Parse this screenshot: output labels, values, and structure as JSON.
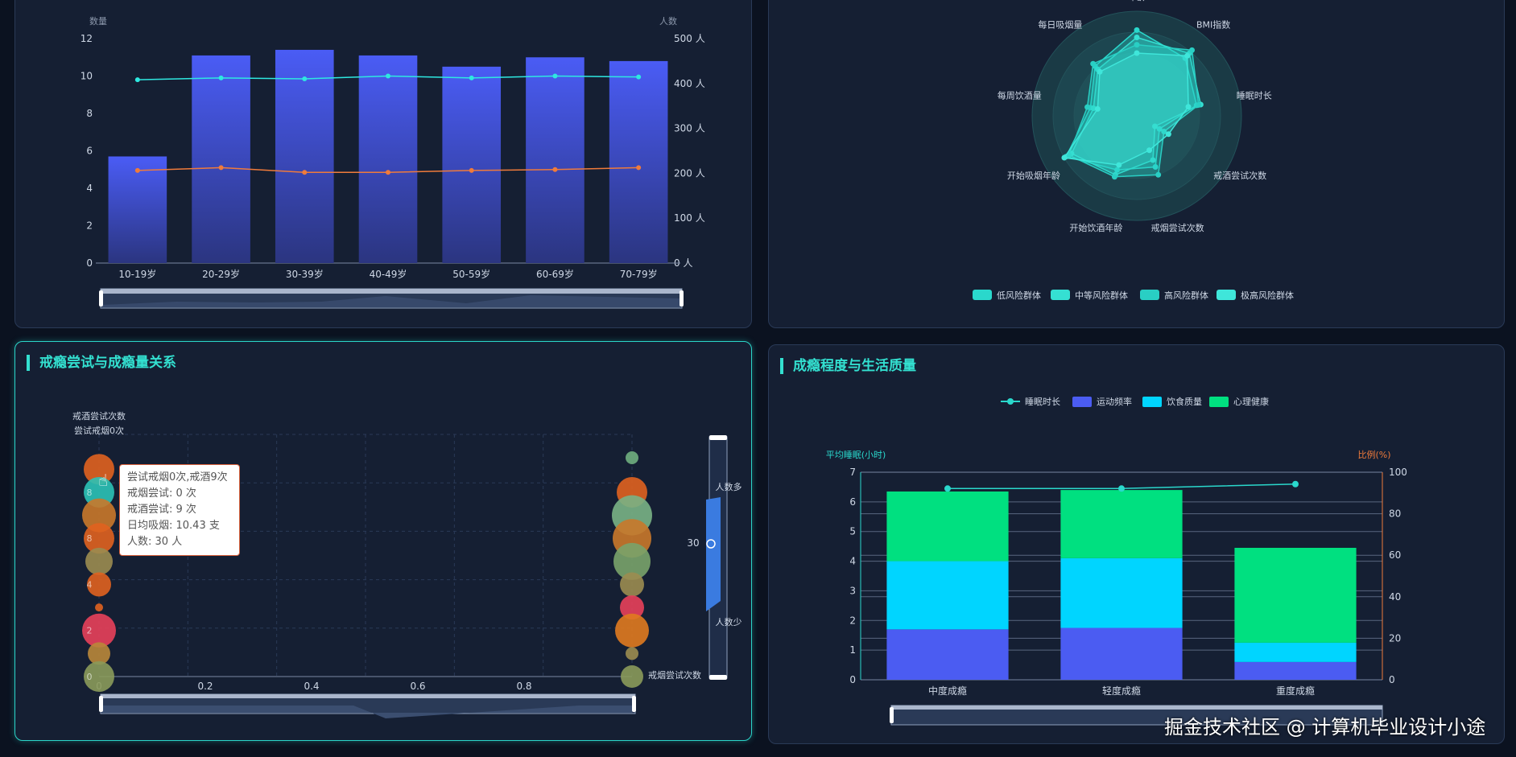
{
  "age_chart": {
    "y_left_label": "数量",
    "y_right_label": "人数",
    "categories": [
      "10-19岁",
      "20-29岁",
      "30-39岁",
      "40-49岁",
      "50-59岁",
      "60-69岁",
      "70-79岁"
    ],
    "left_ticks": [
      "0",
      "2",
      "4",
      "6",
      "8",
      "10",
      "12"
    ],
    "right_ticks": [
      "0 人",
      "100 人",
      "200 人",
      "300 人",
      "400 人",
      "500 人"
    ],
    "chart_data": {
      "type": "bar",
      "categories": [
        "10-19岁",
        "20-29岁",
        "30-39岁",
        "40-49岁",
        "50-59岁",
        "60-69岁",
        "70-79岁"
      ],
      "series": [
        {
          "type": "bar",
          "axis": "left",
          "values": [
            5.7,
            11.1,
            11.4,
            11.1,
            10.5,
            11.0,
            10.8
          ]
        },
        {
          "type": "line",
          "axis": "left",
          "values": [
            9.8,
            9.9,
            9.85,
            10.0,
            9.9,
            10.0,
            9.95
          ]
        },
        {
          "type": "line",
          "axis": "left",
          "values": [
            4.95,
            5.1,
            4.85,
            4.85,
            4.95,
            5.0,
            5.1
          ]
        }
      ],
      "ylim_left": [
        0,
        12
      ],
      "ylim_right": [
        0,
        500
      ],
      "colors": {
        "bar": "#4a5cf5",
        "line1": "#2ee8e0",
        "line2": "#f07b3b"
      }
    }
  },
  "radar_chart": {
    "indicators": [
      "年龄",
      "BMI指数",
      "睡眠时长",
      "戒酒尝试次数",
      "戒烟尝试次数",
      "开始饮酒年龄",
      "开始吸烟年龄",
      "每周饮酒量",
      "每日吸烟量"
    ],
    "legend": [
      "低风险群体",
      "中等风险群体",
      "高风险群体",
      "极高风险群体"
    ],
    "chart_data": {
      "type": "radar",
      "series": [
        {
          "name": "低风险群体",
          "values": [
            0.82,
            0.72,
            0.58,
            0.25,
            0.52,
            0.55,
            0.78,
            0.45,
            0.62
          ]
        },
        {
          "name": "中等风险群体",
          "values": [
            0.75,
            0.78,
            0.62,
            0.2,
            0.45,
            0.6,
            0.72,
            0.42,
            0.58
          ]
        },
        {
          "name": "高风险群体",
          "values": [
            0.68,
            0.82,
            0.6,
            0.3,
            0.6,
            0.62,
            0.75,
            0.48,
            0.65
          ]
        },
        {
          "name": "极高风险群体",
          "values": [
            0.6,
            0.75,
            0.5,
            0.35,
            0.35,
            0.5,
            0.8,
            0.38,
            0.55
          ]
        }
      ],
      "colors": [
        "#2ad8cc",
        "#35e0d3",
        "#29cfc4",
        "#3fe6da"
      ]
    }
  },
  "bubble_chart": {
    "title": "戒瘾尝试与成瘾量关系",
    "y_axis_label": "戒酒尝试次数",
    "x_axis_label": "戒烟尝试次数",
    "top_label": "尝试戒烟0次",
    "x_ticks": [
      "0",
      "0.2",
      "0.4",
      "0.6",
      "0.8"
    ],
    "visual_map": {
      "high": "人数多",
      "low": "人数少",
      "value": "30"
    },
    "tooltip": {
      "line1": "尝试戒烟0次,戒酒9次",
      "line2": "戒烟尝试: 0 次",
      "line3": "戒酒尝试: 9 次",
      "line4": "日均吸烟: 10.43 支",
      "line5": "人数: 30 人"
    },
    "bubble_labels": [
      "8",
      "8",
      "4",
      "2",
      "0"
    ],
    "chart_data": {
      "type": "scatter",
      "xlabel": "戒烟尝试次数",
      "ylabel": "戒酒尝试次数",
      "points": [
        {
          "x": 0,
          "y": 9,
          "r": 19,
          "color": "#e0621f"
        },
        {
          "x": 0,
          "y": 8,
          "r": 19,
          "color": "#2bc2b6"
        },
        {
          "x": 0,
          "y": 7,
          "r": 21,
          "color": "#c9782a"
        },
        {
          "x": 0,
          "y": 6,
          "r": 19,
          "color": "#e0621f"
        },
        {
          "x": 0,
          "y": 5,
          "r": 17,
          "color": "#9b8c50"
        },
        {
          "x": 0,
          "y": 4,
          "r": 15,
          "color": "#e0621f"
        },
        {
          "x": 0,
          "y": 3,
          "r": 5,
          "color": "#e0621f"
        },
        {
          "x": 0,
          "y": 2,
          "r": 21,
          "color": "#e8405a"
        },
        {
          "x": 0,
          "y": 1,
          "r": 14,
          "color": "#b9873a"
        },
        {
          "x": 0,
          "y": 0,
          "r": 19,
          "color": "#8a9a5a"
        },
        {
          "x": 1,
          "y": 9.5,
          "r": 8,
          "color": "#6fae7e"
        },
        {
          "x": 1,
          "y": 8,
          "r": 19,
          "color": "#e0621f"
        },
        {
          "x": 1,
          "y": 7,
          "r": 25,
          "color": "#79b285"
        },
        {
          "x": 1,
          "y": 6,
          "r": 24,
          "color": "#c9782a"
        },
        {
          "x": 1,
          "y": 5,
          "r": 23,
          "color": "#79a36a"
        },
        {
          "x": 1,
          "y": 4,
          "r": 15,
          "color": "#9b8c50"
        },
        {
          "x": 1,
          "y": 3,
          "r": 15,
          "color": "#e8405a"
        },
        {
          "x": 1,
          "y": 2,
          "r": 21,
          "color": "#e07a1f"
        },
        {
          "x": 1,
          "y": 1,
          "r": 8,
          "color": "#9b8c50"
        },
        {
          "x": 1,
          "y": 0,
          "r": 14,
          "color": "#8a9a5a"
        }
      ]
    }
  },
  "quality_chart": {
    "title": "成瘾程度与生活质量",
    "legend": [
      "睡眠时长",
      "运动频率",
      "饮食质量",
      "心理健康"
    ],
    "y_left_label": "平均睡眠(小时)",
    "y_right_label": "比例(%)",
    "left_ticks": [
      "0",
      "1",
      "2",
      "3",
      "4",
      "5",
      "6",
      "7"
    ],
    "right_ticks": [
      "0",
      "20",
      "40",
      "60",
      "80",
      "100"
    ],
    "categories": [
      "中度成瘾",
      "轻度成瘾",
      "重度成瘾"
    ],
    "chart_data": {
      "type": "bar",
      "categories": [
        "中度成瘾",
        "轻度成瘾",
        "重度成瘾"
      ],
      "series": [
        {
          "name": "运动频率",
          "type": "bar",
          "stack": "q",
          "values": [
            1.7,
            1.75,
            0.6
          ]
        },
        {
          "name": "饮食质量",
          "type": "bar",
          "stack": "q",
          "values": [
            2.3,
            2.35,
            0.65
          ]
        },
        {
          "name": "心理健康",
          "type": "bar",
          "stack": "q",
          "values": [
            2.35,
            2.3,
            3.2
          ]
        },
        {
          "name": "睡眠时长",
          "type": "line",
          "values": [
            6.45,
            6.45,
            6.6
          ]
        }
      ],
      "ylim_left": [
        0,
        7
      ],
      "ylim_right": [
        0,
        100
      ],
      "colors": {
        "运动频率": "#4b5cf2",
        "饮食质量": "#00d5ff",
        "心理健康": "#00e080",
        "睡眠时长": "#2ad8cc"
      }
    }
  },
  "watermark": "掘金技术社区 @ 计算机毕业设计小途"
}
